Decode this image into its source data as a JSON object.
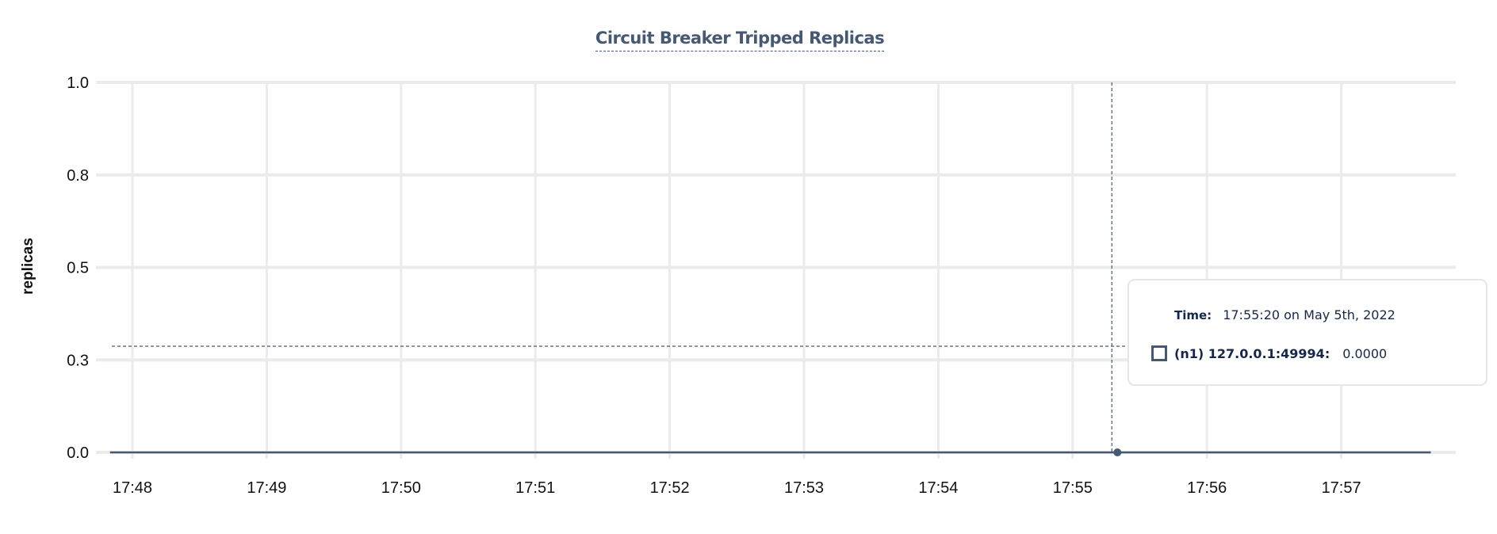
{
  "chart_data": {
    "type": "line",
    "title": "Circuit Breaker Tripped Replicas",
    "ylabel": "replicas",
    "xlabel": "",
    "ylim": [
      0,
      1
    ],
    "y_ticks": [
      {
        "value": 0,
        "label": "0.0"
      },
      {
        "value": 0.25,
        "label": "0.3"
      },
      {
        "value": 0.5,
        "label": "0.5"
      },
      {
        "value": 0.75,
        "label": "0.8"
      },
      {
        "value": 1,
        "label": "1.0"
      }
    ],
    "x_ticks": [
      "17:48",
      "17:49",
      "17:50",
      "17:51",
      "17:52",
      "17:53",
      "17:54",
      "17:55",
      "17:56",
      "17:57"
    ],
    "grid": true,
    "series": [
      {
        "name": "(n1) 127.0.0.1:49994",
        "color": "#475872",
        "points": [
          {
            "x": "17:47:50",
            "y": 0
          },
          {
            "x": "17:55:20",
            "y": 0
          },
          {
            "x": "17:57:40",
            "y": 0
          }
        ]
      }
    ],
    "hover": {
      "x": "17:55:20",
      "y": 0
    }
  },
  "tooltip": {
    "time_label": "Time:",
    "time_value": "17:55:20 on May 5th, 2022",
    "series_label": "(n1) 127.0.0.1:49994:",
    "series_value": "0.0000"
  }
}
